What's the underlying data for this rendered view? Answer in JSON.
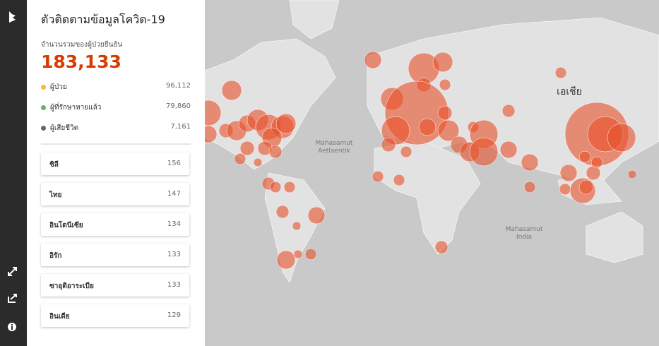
{
  "panel": {
    "title": "ตัวติดตามข้อมูลโควิด-19",
    "total_label": "จำนวนรวมของผู้ป่วยยืนยัน",
    "total": "183,133",
    "stats": [
      {
        "label": "ผู้ป่วย",
        "value": "96,112"
      },
      {
        "label": "ผู้ที่รักษาหายแล้ว",
        "value": "79,860"
      },
      {
        "label": "ผู้เสียชีวิต",
        "value": "7,161"
      }
    ],
    "countries": [
      {
        "name": "ชิลี",
        "value": "156"
      },
      {
        "name": "ไทย",
        "value": "147"
      },
      {
        "name": "อินโดนีเซีย",
        "value": "134"
      },
      {
        "name": "อิรัก",
        "value": "133"
      },
      {
        "name": "ซาอุดิอาระเบีย",
        "value": "133"
      },
      {
        "name": "อินเดีย",
        "value": "129"
      }
    ]
  },
  "map": {
    "labels": [
      "Mahasamut",
      "Aetlaentik",
      "Mahasamut",
      "India",
      "เอเชีย"
    ]
  }
}
